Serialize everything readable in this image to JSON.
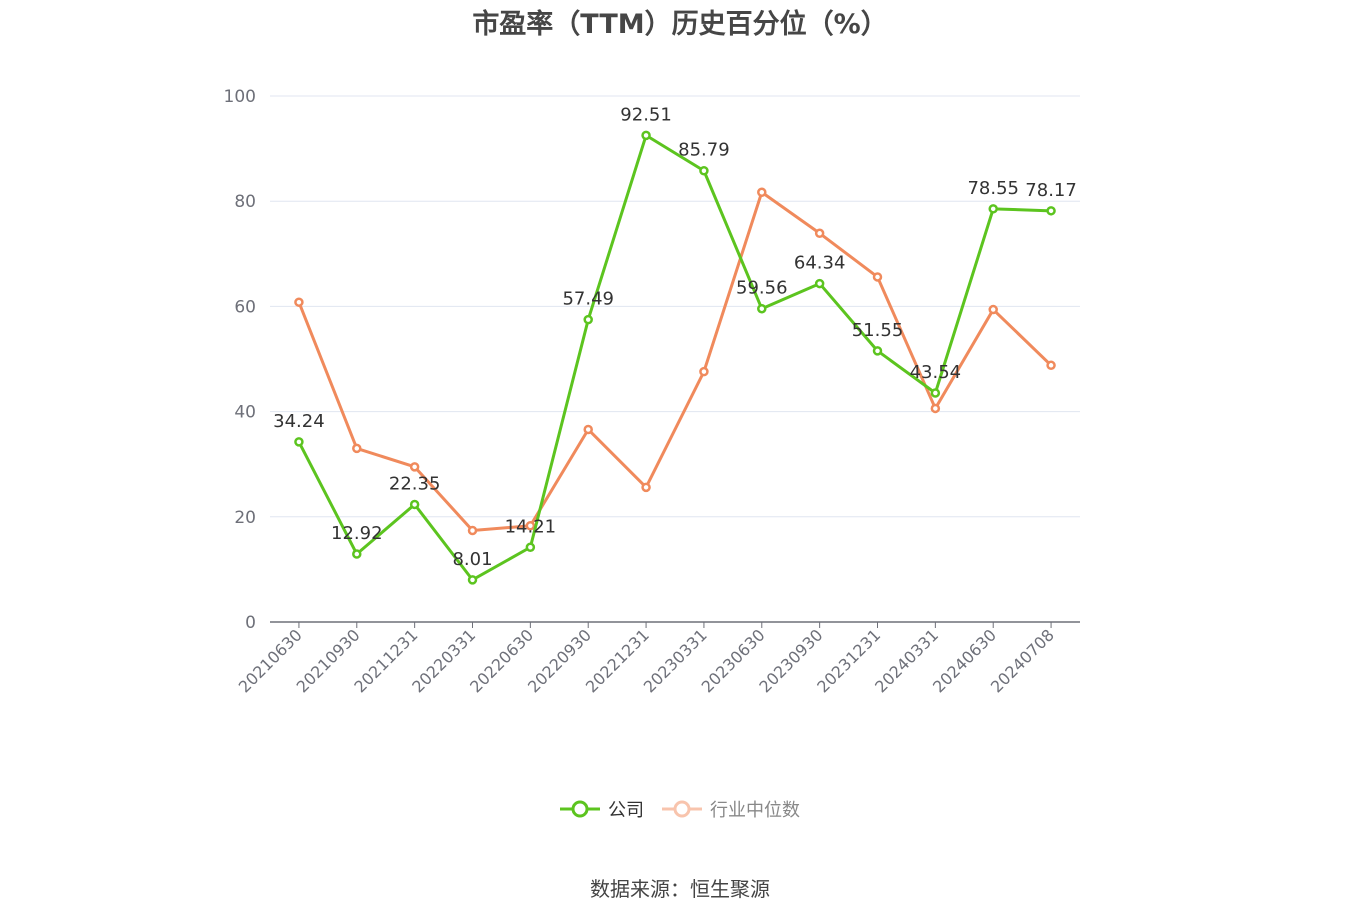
{
  "title": "市盈率（TTM）历史百分位（%）",
  "source": "数据来源：恒生聚源",
  "colors": {
    "company": "#5cc41f",
    "industry": "#f08a5c",
    "grid": "#e0e6f1",
    "axis": "#6e7079",
    "label": "#333333"
  },
  "chart_data": {
    "type": "line",
    "title": "市盈率（TTM）历史百分位（%）",
    "xlabel": "",
    "ylabel": "",
    "ylim": [
      0,
      100
    ],
    "yticks": [
      0,
      20,
      40,
      60,
      80,
      100
    ],
    "grid": true,
    "legend_position": "bottom",
    "categories": [
      "20210630",
      "20210930",
      "20211231",
      "20220331",
      "20220630",
      "20220930",
      "20221231",
      "20230331",
      "20230630",
      "20230930",
      "20231231",
      "20240331",
      "20240630",
      "20240708"
    ],
    "series": [
      {
        "name": "公司",
        "values": [
          34.24,
          12.92,
          22.35,
          8.01,
          14.21,
          57.49,
          92.51,
          85.79,
          59.56,
          64.34,
          51.55,
          43.54,
          78.55,
          78.17
        ],
        "show_labels": true
      },
      {
        "name": "行业中位数",
        "values": [
          60.8,
          33.0,
          29.5,
          17.4,
          18.3,
          36.6,
          25.6,
          47.6,
          81.7,
          73.9,
          65.6,
          40.6,
          59.4,
          48.8
        ],
        "show_labels": false
      }
    ]
  },
  "legend": [
    {
      "label": "公司",
      "style": "active"
    },
    {
      "label": "行业中位数",
      "style": "muted"
    }
  ]
}
